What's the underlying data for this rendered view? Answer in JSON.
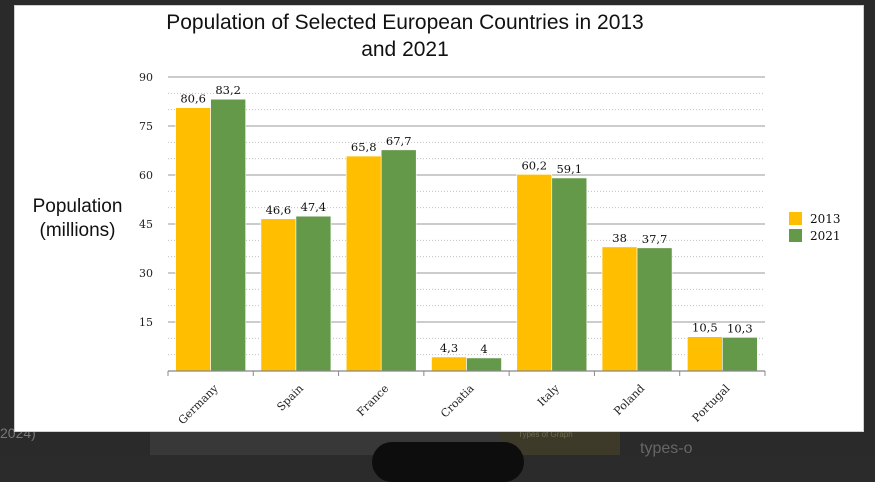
{
  "background": {
    "left_text": "2024)",
    "right_text": "types-o",
    "mid_text": "Types of Graph"
  },
  "colors": {
    "series_2013": "#FFBF00",
    "series_2021": "#64994A",
    "grid": "#9a9a9a",
    "axis": "#888888"
  },
  "chart_data": {
    "type": "bar",
    "title": "Population of Selected European Countries in 2013 and 2021",
    "xlabel": "",
    "ylabel": "Population (millions)",
    "ylim": [
      0,
      90
    ],
    "yticks": [
      "15",
      "30",
      "45",
      "60",
      "75",
      "90"
    ],
    "ytick_values": [
      15,
      30,
      45,
      60,
      75,
      90
    ],
    "grid": true,
    "legend_position": "right",
    "categories": [
      "Germany",
      "Spain",
      "France",
      "Croatia",
      "Italy",
      "Poland",
      "Portugal"
    ],
    "series": [
      {
        "name": "2013",
        "values": [
          80.6,
          46.6,
          65.8,
          4.3,
          60.2,
          38,
          10.5
        ],
        "labels": [
          "80,6",
          "46,6",
          "65,8",
          "4,3",
          "60,2",
          "38",
          "10,5"
        ]
      },
      {
        "name": "2021",
        "values": [
          83.2,
          47.4,
          67.7,
          4,
          59.1,
          37.7,
          10.3
        ],
        "labels": [
          "83,2",
          "47,4",
          "67,7",
          "4",
          "59,1",
          "37,7",
          "10,3"
        ]
      }
    ]
  }
}
